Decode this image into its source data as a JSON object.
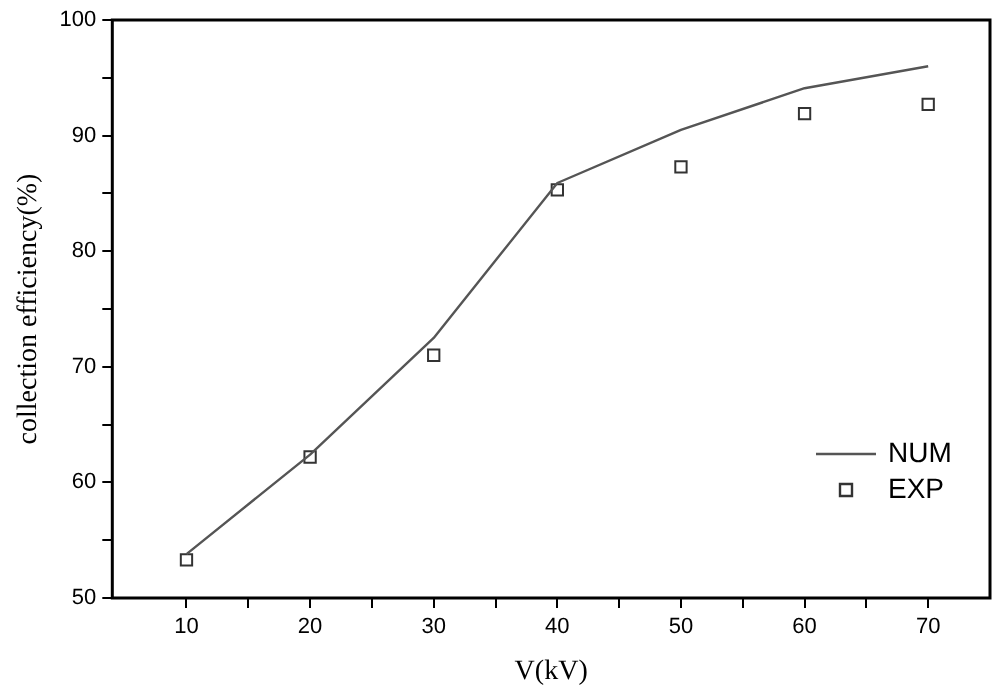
{
  "chart_data": {
    "type": "line",
    "xlabel": "V(kV)",
    "ylabel": "collection efficiency(%)",
    "x": [
      10,
      20,
      30,
      40,
      50,
      60,
      70
    ],
    "series": [
      {
        "name": "NUM",
        "type": "line",
        "color": "#555555",
        "marker": "none",
        "line_style": "solid",
        "values": [
          53.8,
          62.4,
          72.5,
          85.9,
          90.5,
          94.1,
          96.0
        ]
      },
      {
        "name": "EXP",
        "type": "scatter",
        "color": "#333333",
        "marker": "square",
        "values": [
          53.3,
          62.2,
          71.0,
          85.3,
          87.3,
          91.9,
          92.7
        ]
      }
    ],
    "xlim": [
      4,
      75
    ],
    "xticks": [
      10,
      {
        "value": 15,
        "label": null
      },
      20,
      {
        "value": 25,
        "label": null
      },
      30,
      {
        "value": 35,
        "label": null
      },
      40,
      {
        "value": 45,
        "label": null
      },
      50,
      {
        "value": 55,
        "label": null
      },
      60,
      {
        "value": 65,
        "label": null
      },
      70
    ],
    "ylim": [
      50,
      100
    ],
    "yticks": [
      50,
      {
        "value": 55,
        "label": null
      },
      60,
      {
        "value": 65,
        "label": null
      },
      70,
      {
        "value": 75,
        "label": null
      },
      80,
      {
        "value": 85,
        "label": null
      },
      90,
      {
        "value": 95,
        "label": null
      },
      100
    ],
    "grid": false,
    "legend": "bottom right"
  }
}
